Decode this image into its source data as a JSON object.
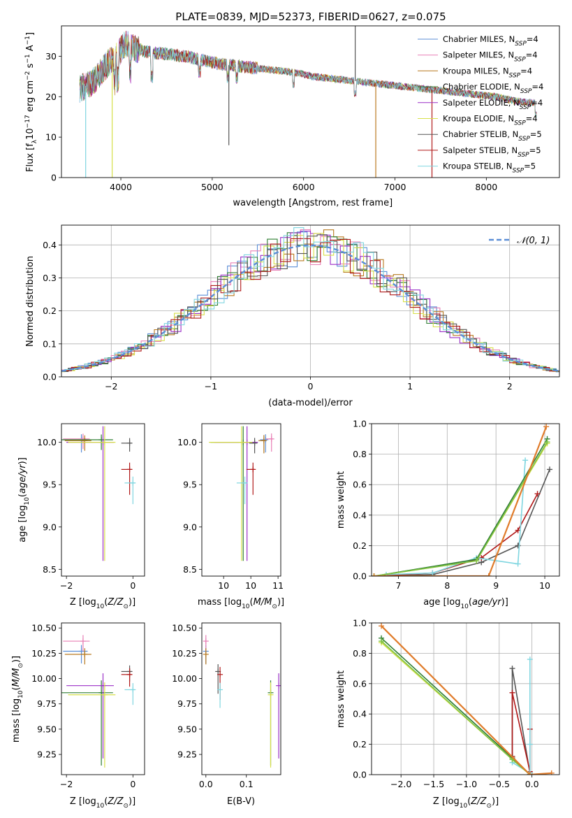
{
  "figure": {
    "title": "PLATE=0839, MJD=52373, FIBERID=0627, z=0.075"
  },
  "colors": {
    "Chabrier MILES": "#5b8ed6",
    "Salpeter MILES": "#e87fb5",
    "Kroupa MILES": "#b87a20",
    "Chabrier ELODIE": "#2e7d32",
    "Salpeter ELODIE": "#9b2fc7",
    "Kroupa ELODIE": "#d7e04a",
    "Chabrier STELIB": "#555555",
    "Salpeter STELIB": "#b01818",
    "Kroupa STELIB": "#7fd6e0",
    "gaussian": "#5b8ed6",
    "extra_orange": "#e07b2a",
    "extra_green": "#7cc242"
  },
  "chart_data": [
    {
      "type": "line",
      "title": "PLATE=0839, MJD=52373, FIBERID=0627, z=0.075",
      "xlabel": "wavelength [Angstrom, rest frame]",
      "ylabel": "Flux [fλ10⁻¹⁷ erg cm⁻² s⁻¹ A⁻¹]",
      "xlim": [
        3350,
        8800
      ],
      "ylim": [
        0,
        37.5
      ],
      "xticks": [
        4000,
        5000,
        6000,
        7000,
        8000
      ],
      "yticks": [
        0,
        10,
        20,
        30
      ],
      "legend_position": "top-right",
      "legend": [
        {
          "label": "Chabrier MILES, N",
          "sub": "SSP",
          "tail": "=4",
          "color_key": "Chabrier MILES"
        },
        {
          "label": "Salpeter MILES, N",
          "sub": "SSP",
          "tail": "=4",
          "color_key": "Salpeter MILES"
        },
        {
          "label": "Kroupa MILES, N",
          "sub": "SSP",
          "tail": "=4",
          "color_key": "Kroupa MILES"
        },
        {
          "label": "Chabrier ELODIE, N",
          "sub": "SSP",
          "tail": "=4",
          "color_key": "Chabrier ELODIE"
        },
        {
          "label": "Salpeter ELODIE, N",
          "sub": "SSP",
          "tail": "=4",
          "color_key": "Salpeter ELODIE"
        },
        {
          "label": "Kroupa ELODIE, N",
          "sub": "SSP",
          "tail": "=4",
          "color_key": "Kroupa ELODIE"
        },
        {
          "label": "Chabrier STELIB, N",
          "sub": "SSP",
          "tail": "=5",
          "color_key": "Chabrier STELIB"
        },
        {
          "label": "Salpeter STELIB, N",
          "sub": "SSP",
          "tail": "=5",
          "color_key": "Salpeter STELIB"
        },
        {
          "label": "Kroupa STELIB, N",
          "sub": "SSP",
          "tail": "=5",
          "color_key": "Kroupa STELIB"
        }
      ],
      "continuum": {
        "x": [
          3550,
          3650,
          3750,
          3850,
          3950,
          4050,
          4150,
          4300,
          4500,
          4700,
          4900,
          5100,
          5300,
          5500,
          5700,
          5900,
          6100,
          6300,
          6500,
          6700,
          6900,
          7100,
          7300,
          7500,
          7700,
          7900,
          8100,
          8300,
          8500
        ],
        "y": [
          22,
          23,
          25,
          28,
          30,
          33,
          32,
          31,
          30.5,
          30,
          29,
          28,
          27.5,
          27,
          26.5,
          26,
          25,
          24.5,
          24,
          23.5,
          23,
          22.5,
          22,
          21.5,
          21,
          20.5,
          20,
          19,
          18.5
        ]
      },
      "glitches": [
        {
          "x": 3615,
          "y": 0,
          "color_key": "Kroupa STELIB"
        },
        {
          "x": 3905,
          "y": 0,
          "color_key": "Kroupa ELODIE"
        },
        {
          "x": 6790,
          "y": 0,
          "color_key": "Kroupa MILES"
        },
        {
          "x": 7405,
          "y": 0,
          "color_key": "Salpeter STELIB"
        },
        {
          "x": 6565,
          "y": 37.5,
          "color_key": "Chabrier STELIB"
        },
        {
          "x": 5182,
          "y": 8,
          "color_key": "Chabrier STELIB"
        }
      ]
    },
    {
      "type": "line",
      "xlabel": "(data-model)/error",
      "ylabel": "Normed distribution",
      "xlim": [
        -2.5,
        2.5
      ],
      "ylim": [
        0,
        0.46
      ],
      "xticks": [
        -2,
        -1,
        0,
        1,
        2
      ],
      "yticks": [
        0.0,
        0.1,
        0.2,
        0.3,
        0.4
      ],
      "gaussian": {
        "label": "𝒩(0, 1)",
        "mu": 0,
        "sigma": 1
      },
      "hist_bin_width": 0.1,
      "grid": true
    },
    {
      "type": "scatter",
      "xlabel": "Z [log10(Z/Z⊙)]",
      "ylabel": "age  [log10(age/yr)]",
      "xlim": [
        -2.15,
        0.35
      ],
      "ylim": [
        8.42,
        10.22
      ],
      "xticks": [
        -2,
        0
      ],
      "yticks": [
        8.5,
        9.0,
        9.5,
        10.0
      ],
      "points": [
        {
          "x": -1.55,
          "y": 10.03,
          "xerr": 0.55,
          "yerr": 0.15,
          "color_key": "Chabrier MILES"
        },
        {
          "x": -1.5,
          "y": 10.04,
          "xerr": 0.6,
          "yerr": 0.12,
          "color_key": "Salpeter MILES"
        },
        {
          "x": -1.45,
          "y": 10.02,
          "xerr": 0.6,
          "yerr": 0.12,
          "color_key": "Kroupa MILES"
        },
        {
          "x": -0.95,
          "y": 10.03,
          "xerr": 1.2,
          "yerr": 0.12,
          "color_key": "Chabrier ELODIE"
        },
        {
          "x": -0.9,
          "y": 10.0,
          "xerr": 1.1,
          "yerr": 1.4,
          "color_key": "Salpeter ELODIE"
        },
        {
          "x": -0.85,
          "y": 10.0,
          "xerr": 1.1,
          "yerr": 1.4,
          "color_key": "Kroupa ELODIE"
        },
        {
          "x": -0.1,
          "y": 9.99,
          "xerr": 0.25,
          "yerr": 0.1,
          "color_key": "Chabrier STELIB"
        },
        {
          "x": -0.1,
          "y": 9.68,
          "xerr": 0.25,
          "yerr": 0.3,
          "color_key": "Salpeter STELIB"
        },
        {
          "x": 0.0,
          "y": 9.52,
          "xerr": 0.25,
          "yerr": 0.25,
          "color_key": "Kroupa STELIB"
        }
      ]
    },
    {
      "type": "scatter",
      "xlabel": "mass [log10(M/M⊙)]",
      "xlim": [
        9.1,
        10.55
      ],
      "ylim": [
        8.42,
        10.22
      ],
      "xticks": [
        9.5,
        10.0,
        10.5
      ],
      "yticks": [
        8.5,
        9.0,
        9.5,
        10.0
      ],
      "points": [
        {
          "x": 10.27,
          "y": 10.03,
          "xerr": 0.1,
          "yerr": 0.15,
          "color_key": "Chabrier MILES"
        },
        {
          "x": 10.38,
          "y": 10.04,
          "xerr": 0.1,
          "yerr": 0.15,
          "color_key": "Salpeter MILES"
        },
        {
          "x": 10.24,
          "y": 10.02,
          "xerr": 0.1,
          "yerr": 0.15,
          "color_key": "Kroupa MILES"
        },
        {
          "x": 9.86,
          "y": 10.0,
          "xerr": 0.6,
          "yerr": 1.4,
          "color_key": "Chabrier ELODIE"
        },
        {
          "x": 9.93,
          "y": 10.0,
          "xerr": 0.6,
          "yerr": 1.4,
          "color_key": "Salpeter ELODIE"
        },
        {
          "x": 9.83,
          "y": 10.0,
          "xerr": 0.6,
          "yerr": 1.4,
          "color_key": "Kroupa ELODIE"
        },
        {
          "x": 10.07,
          "y": 9.99,
          "xerr": 0.1,
          "yerr": 0.12,
          "color_key": "Chabrier STELIB"
        },
        {
          "x": 10.04,
          "y": 9.68,
          "xerr": 0.12,
          "yerr": 0.3,
          "color_key": "Salpeter STELIB"
        },
        {
          "x": 9.89,
          "y": 9.52,
          "xerr": 0.15,
          "yerr": 0.25,
          "color_key": "Kroupa STELIB"
        }
      ]
    },
    {
      "type": "line",
      "xlabel": "age  [log10(age/yr)]",
      "ylabel": "mass weight",
      "xlim": [
        6.45,
        10.3
      ],
      "ylim": [
        0,
        1.0
      ],
      "xticks": [
        7,
        8,
        9,
        10
      ],
      "yticks": [
        0.0,
        0.2,
        0.4,
        0.6,
        0.8,
        1.0
      ],
      "grid": true,
      "series": [
        {
          "color_key": "Chabrier STELIB",
          "x": [
            6.5,
            7.7,
            8.7,
            9.45,
            10.1
          ],
          "y": [
            0.0,
            0.01,
            0.09,
            0.2,
            0.7
          ]
        },
        {
          "color_key": "Salpeter STELIB",
          "x": [
            6.5,
            7.7,
            8.7,
            9.45,
            9.85
          ],
          "y": [
            0.0,
            0.02,
            0.12,
            0.3,
            0.54
          ]
        },
        {
          "color_key": "Kroupa STELIB",
          "x": [
            6.75,
            7.7,
            8.6,
            9.45,
            9.6
          ],
          "y": [
            0.01,
            0.02,
            0.12,
            0.08,
            0.76
          ]
        },
        {
          "color_key": "Chabrier ELODIE",
          "x": [
            6.5,
            8.6,
            10.05
          ],
          "y": [
            0.0,
            0.11,
            0.9
          ]
        },
        {
          "color_key": "Kroupa ELODIE",
          "x": [
            6.5,
            8.6,
            10.05
          ],
          "y": [
            0.0,
            0.1,
            0.87
          ]
        },
        {
          "color_key": "extra_green",
          "x": [
            6.5,
            8.6,
            10.05
          ],
          "y": [
            0.0,
            0.1,
            0.88
          ]
        },
        {
          "color_key": "extra_orange",
          "x": [
            6.5,
            8.85,
            10.03
          ],
          "y": [
            0.0,
            0.0,
            0.98
          ]
        }
      ]
    },
    {
      "type": "scatter",
      "xlabel": "Z [log10(Z/Z⊙)]",
      "ylabel": "mass [log10(M/M⊙)]",
      "xlim": [
        -2.15,
        0.35
      ],
      "ylim": [
        9.05,
        10.55
      ],
      "xticks": [
        -2,
        0
      ],
      "yticks": [
        9.25,
        9.5,
        9.75,
        10.0,
        10.25,
        10.5
      ],
      "points": [
        {
          "x": -1.55,
          "y": 10.27,
          "xerr": 0.55,
          "yerr": 0.12,
          "color_key": "Chabrier MILES"
        },
        {
          "x": -1.5,
          "y": 10.37,
          "xerr": 0.6,
          "yerr": 0.1,
          "color_key": "Salpeter MILES"
        },
        {
          "x": -1.45,
          "y": 10.24,
          "xerr": 0.6,
          "yerr": 0.1,
          "color_key": "Kroupa MILES"
        },
        {
          "x": -0.95,
          "y": 9.86,
          "xerr": 1.2,
          "yerr": 0.72,
          "color_key": "Chabrier ELODIE"
        },
        {
          "x": -0.9,
          "y": 9.93,
          "xerr": 1.1,
          "yerr": 0.72,
          "color_key": "Salpeter ELODIE"
        },
        {
          "x": -0.85,
          "y": 9.84,
          "xerr": 1.1,
          "yerr": 0.72,
          "color_key": "Kroupa ELODIE"
        },
        {
          "x": -0.1,
          "y": 10.07,
          "xerr": 0.25,
          "yerr": 0.1,
          "color_key": "Chabrier STELIB"
        },
        {
          "x": -0.1,
          "y": 10.04,
          "xerr": 0.25,
          "yerr": 0.12,
          "color_key": "Salpeter STELIB"
        },
        {
          "x": 0.0,
          "y": 9.89,
          "xerr": 0.25,
          "yerr": 0.15,
          "color_key": "Kroupa STELIB"
        }
      ]
    },
    {
      "type": "scatter",
      "xlabel": "E(B-V)",
      "xlim": [
        -0.01,
        0.185
      ],
      "ylim": [
        9.05,
        10.55
      ],
      "xticks": [
        0.0,
        0.1
      ],
      "yticks": [
        9.25,
        9.5,
        9.75,
        10.0,
        10.25,
        10.5
      ],
      "points": [
        {
          "x": 0.0,
          "y": 10.27,
          "yerr": 0.12,
          "color_key": "Chabrier MILES"
        },
        {
          "x": 0.0,
          "y": 10.37,
          "yerr": 0.1,
          "color_key": "Salpeter MILES"
        },
        {
          "x": 0.0,
          "y": 10.24,
          "yerr": 0.1,
          "color_key": "Kroupa MILES"
        },
        {
          "x": 0.16,
          "y": 9.86,
          "yerr": 0.72,
          "color_key": "Chabrier ELODIE"
        },
        {
          "x": 0.18,
          "y": 9.93,
          "yerr": 0.72,
          "color_key": "Salpeter ELODIE"
        },
        {
          "x": 0.16,
          "y": 9.84,
          "yerr": 0.72,
          "color_key": "Kroupa ELODIE"
        },
        {
          "x": 0.03,
          "y": 10.07,
          "yerr": 0.22,
          "color_key": "Chabrier STELIB"
        },
        {
          "x": 0.035,
          "y": 10.04,
          "yerr": 0.25,
          "color_key": "Salpeter STELIB"
        },
        {
          "x": 0.035,
          "y": 9.89,
          "yerr": 0.18,
          "color_key": "Kroupa STELIB"
        }
      ]
    },
    {
      "type": "line",
      "xlabel": "Z [log10(Z/Z⊙)]",
      "ylabel": "mass weight",
      "xlim": [
        -2.45,
        0.42
      ],
      "ylim": [
        0,
        1.0
      ],
      "xticks": [
        -2.0,
        -1.5,
        -1.0,
        -0.5,
        0.0
      ],
      "yticks": [
        0.0,
        0.2,
        0.4,
        0.6,
        0.8,
        1.0
      ],
      "grid": true,
      "series": [
        {
          "color_key": "Chabrier STELIB",
          "x": [
            -0.3,
            -0.3,
            -0.03,
            -0.03
          ],
          "y": [
            0.1,
            0.7,
            0.01,
            0.0
          ]
        },
        {
          "color_key": "Salpeter STELIB",
          "x": [
            -0.3,
            -0.3,
            -0.03,
            -0.03
          ],
          "y": [
            0.12,
            0.54,
            0.02,
            0.3
          ]
        },
        {
          "color_key": "Kroupa STELIB",
          "x": [
            -0.3,
            -0.03,
            -0.03,
            -0.03
          ],
          "y": [
            0.08,
            0.01,
            0.2,
            0.76
          ]
        },
        {
          "color_key": "Chabrier ELODIE",
          "x": [
            -2.3,
            -0.3,
            -0.03
          ],
          "y": [
            0.9,
            0.11,
            0.0
          ]
        },
        {
          "color_key": "Kroupa ELODIE",
          "x": [
            -2.3,
            -0.3,
            -0.03
          ],
          "y": [
            0.87,
            0.1,
            0.0
          ]
        },
        {
          "color_key": "extra_green",
          "x": [
            -2.3,
            -0.3,
            -0.03
          ],
          "y": [
            0.88,
            0.1,
            0.0
          ]
        },
        {
          "color_key": "extra_orange",
          "x": [
            -2.3,
            -0.03,
            0.3
          ],
          "y": [
            0.98,
            0.0,
            0.01
          ]
        }
      ]
    }
  ]
}
